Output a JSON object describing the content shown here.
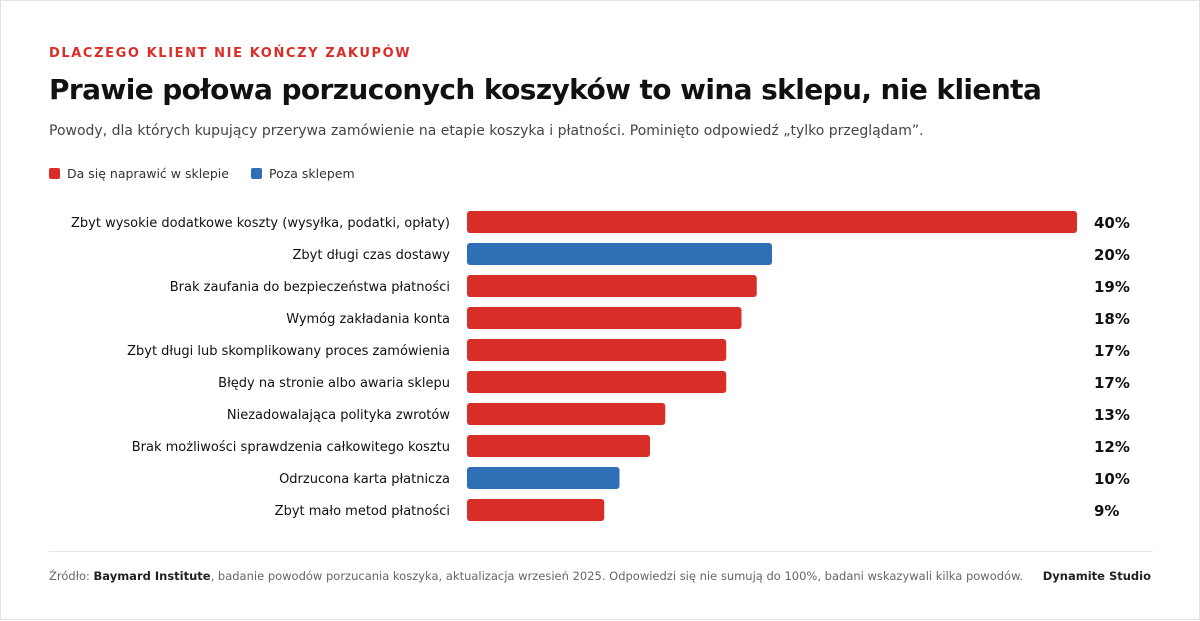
{
  "header": {
    "eyebrow": "DLACZEGO KLIENT NIE KOŃCZY ZAKUPÓW",
    "title": "Prawie połowa porzuconych koszyków to wina sklepu, nie klienta",
    "subtitle": "Powody, dla których kupujący przerywa zamówienie na etapie koszyka i płatności. Pominięto odpowiedź „tylko przeglądam”."
  },
  "legend": [
    {
      "label": "Da się naprawić w sklepie",
      "color": "#d92e27"
    },
    {
      "label": "Poza sklepem",
      "color": "#2f6fb5"
    }
  ],
  "chart_data": {
    "type": "bar",
    "orientation": "horizontal",
    "categories": [
      "Zbyt wysokie dodatkowe koszty (wysyłka, podatki, opłaty)",
      "Zbyt długi czas dostawy",
      "Brak zaufania do bezpieczeństwa płatności",
      "Wymóg zakładania konta",
      "Zbyt długi lub skomplikowany proces zamówienia",
      "Błędy na stronie albo awaria sklepu",
      "Niezadowalająca polityka zwrotów",
      "Brak możliwości sprawdzenia całkowitego kosztu",
      "Odrzucona karta płatnicza",
      "Zbyt mało metod płatności"
    ],
    "values": [
      40,
      20,
      19,
      18,
      17,
      17,
      13,
      12,
      10,
      9
    ],
    "value_labels": [
      "40%",
      "20%",
      "19%",
      "18%",
      "17%",
      "17%",
      "13%",
      "12%",
      "10%",
      "9%"
    ],
    "groups": [
      "Da się naprawić w sklepie",
      "Poza sklepem",
      "Da się naprawić w sklepie",
      "Da się naprawić w sklepie",
      "Da się naprawić w sklepie",
      "Da się naprawić w sklepie",
      "Da się naprawić w sklepie",
      "Da się naprawić w sklepie",
      "Poza sklepem",
      "Da się naprawić w sklepie"
    ],
    "xlim": [
      0,
      40
    ],
    "grid": false,
    "legend_position": "top-left",
    "colors": {
      "Da się naprawić w sklepie": "#d92e27",
      "Poza sklepem": "#2f6fb5"
    }
  },
  "footer": {
    "source_prefix": "Źródło: ",
    "source_name": "Baymard Institute",
    "source_rest": ", badanie powodów porzucania koszyka, aktualizacja wrzesień 2025. Odpowiedzi się nie sumują do 100%, badani wskazywali kilka powodów.",
    "brand": "Dynamite Studio"
  }
}
